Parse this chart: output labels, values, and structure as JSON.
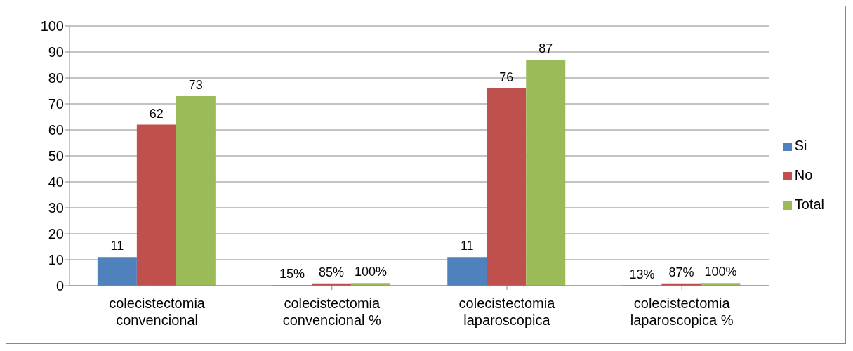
{
  "chart_data": {
    "type": "bar",
    "categories": [
      "colecistectomia convencional",
      "colecistectomia convencional %",
      "colecistectomia laparoscopica",
      "colecistectomia laparoscopica %"
    ],
    "series": [
      {
        "name": "Si",
        "color": "#4f81bd",
        "values": [
          11,
          0.15,
          11,
          0.13
        ],
        "value_labels": [
          "11",
          "15%",
          "11",
          "13%"
        ]
      },
      {
        "name": "No",
        "color": "#c0504d",
        "values": [
          62,
          0.85,
          76,
          0.87
        ],
        "value_labels": [
          "62",
          "85%",
          "76",
          "87%"
        ]
      },
      {
        "name": "Total",
        "color": "#9bbb59",
        "values": [
          73,
          1,
          87,
          1
        ],
        "value_labels": [
          "73",
          "100%",
          "87",
          "100%"
        ]
      }
    ],
    "ylim": [
      0,
      100
    ],
    "yticks": [
      0,
      10,
      20,
      30,
      40,
      50,
      60,
      70,
      80,
      90,
      100
    ],
    "grid": "y",
    "legend": "right"
  }
}
